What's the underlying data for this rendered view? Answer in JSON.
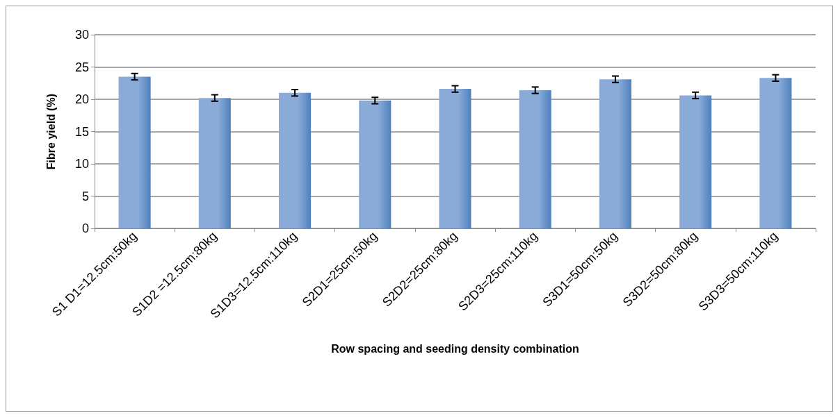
{
  "chart_data": {
    "type": "bar",
    "xlabel": "Row spacing and seeding density combination",
    "ylabel": "Fibre yield (%)",
    "categories": [
      "S1 D1=12.5cm:50kg",
      "S1D2 =12.5cm:80kg",
      "S1D3=12.5cm:110kg",
      "S2D1=25cm:50kg",
      "S2D2=25cm:80kg",
      "S2D3=25cm:110kg",
      "S3D1=50cm:50kg",
      "S3D2=50cm:80kg",
      "S3D3=50cm:110kg"
    ],
    "values": [
      23.5,
      20.2,
      21.0,
      19.8,
      21.6,
      21.4,
      23.1,
      20.6,
      23.3
    ],
    "errors": [
      0.5,
      0.5,
      0.5,
      0.5,
      0.5,
      0.5,
      0.5,
      0.5,
      0.5
    ],
    "color": "#8aabd8",
    "ylim": [
      0,
      30
    ],
    "yticks": [
      0,
      5,
      10,
      15,
      20,
      25,
      30
    ],
    "grid": "y"
  }
}
